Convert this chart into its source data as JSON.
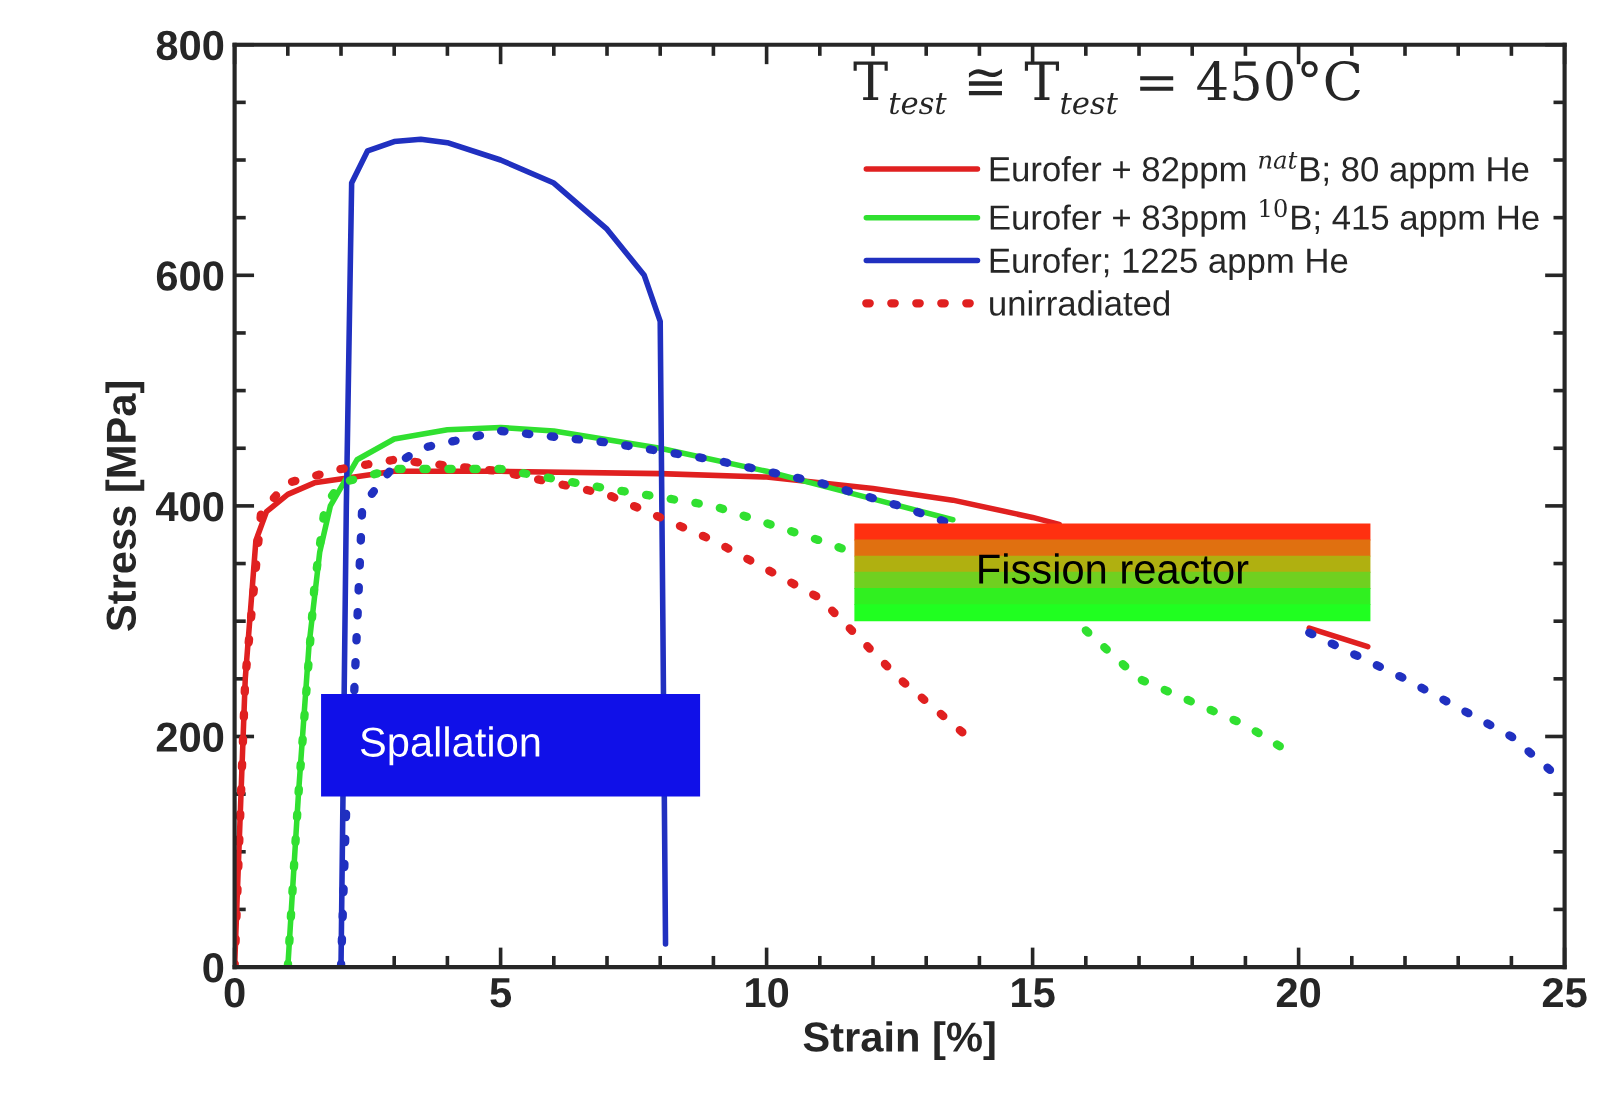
{
  "chart_data": {
    "type": "line",
    "xlabel": "Strain [%]",
    "ylabel": "Stress [MPa]",
    "xlim": [
      0,
      25
    ],
    "ylim": [
      0,
      800
    ],
    "xticks": [
      0,
      5,
      10,
      15,
      20,
      25
    ],
    "yticks": [
      0,
      200,
      400,
      600,
      800
    ],
    "grid": false,
    "legend": "top right",
    "legend_title": "T$_{test}$ ≅ T$_{test}$ = 450°C",
    "series": [
      {
        "name": "Eurofer + 82ppm $^{nat}$B; 80 appm He",
        "color": "#e02020",
        "line_style": "solid",
        "x": [
          0,
          0.2,
          0.4,
          0.6,
          1,
          1.5,
          3,
          5,
          8,
          10,
          12,
          13.5,
          15,
          15.5,
          17,
          20.2,
          21.3
        ],
        "values": [
          0,
          250,
          370,
          395,
          410,
          420,
          430,
          430,
          428,
          425,
          415,
          405,
          390,
          384,
          null,
          294,
          278
        ]
      },
      {
        "name": "Eurofer + 83ppm $^{10}$B; 415 appm He",
        "color": "#30e030",
        "line_style": "solid",
        "x": [
          1,
          1.2,
          1.4,
          1.6,
          1.8,
          2.3,
          3,
          4,
          5,
          6,
          8,
          10,
          11,
          12.5,
          13.5
        ],
        "values": [
          0,
          150,
          280,
          360,
          400,
          440,
          458,
          466,
          468,
          465,
          450,
          430,
          418,
          400,
          388
        ]
      },
      {
        "name": "Eurofer; 1225 appm He",
        "color": "#2030c0",
        "line_style": "solid",
        "x": [
          2,
          2.1,
          2.2,
          2.5,
          3,
          3.5,
          4,
          5,
          6,
          7,
          7.7,
          8.0,
          8.05,
          8.1
        ],
        "values": [
          0,
          400,
          680,
          708,
          716,
          718,
          715,
          700,
          680,
          640,
          600,
          560,
          300,
          20
        ]
      },
      {
        "name": "unirradiated",
        "color": "#e02020",
        "line_style": "dotted",
        "x": [
          0,
          0.2,
          0.5,
          1,
          2,
          3,
          5,
          7,
          9,
          11,
          12.5,
          13.9
        ],
        "values": [
          0,
          250,
          395,
          420,
          432,
          440,
          430,
          410,
          370,
          320,
          250,
          195
        ]
      },
      {
        "color": "#30e030",
        "line_style": "dotted",
        "x": [
          1,
          1.2,
          1.5,
          1.7,
          2,
          3,
          5,
          7,
          9,
          11,
          11.6,
          14,
          16,
          17,
          19,
          19.7
        ],
        "values": [
          0,
          150,
          330,
          400,
          420,
          432,
          432,
          415,
          400,
          370,
          360,
          null,
          292,
          250,
          210,
          190
        ]
      },
      {
        "color": "#2030c0",
        "line_style": "dotted",
        "x": [
          2,
          2.1,
          2.2,
          2.25,
          2.4,
          3,
          3.5,
          5,
          7,
          9,
          11,
          12.5,
          13.5,
          16,
          20.2,
          22,
          24,
          25
        ],
        "values": [
          0,
          140,
          null,
          240,
          400,
          435,
          450,
          465,
          455,
          440,
          420,
          400,
          384,
          null,
          290,
          250,
          200,
          160
        ]
      }
    ],
    "annotations": [
      "Spallation",
      "Fission reactor"
    ]
  }
}
